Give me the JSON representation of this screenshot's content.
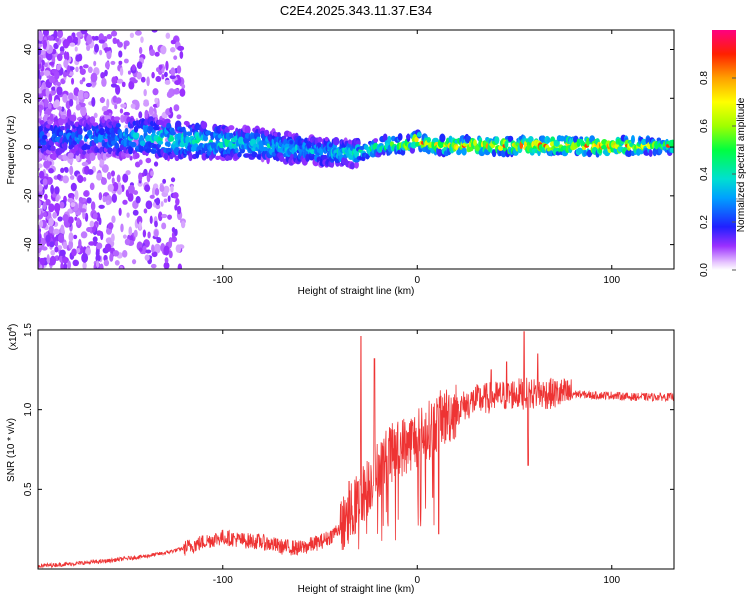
{
  "title": "C2E4.2025.343.11.37.E34",
  "chart_data": [
    {
      "type": "heatmap",
      "title": "C2E4.2025.343.11.37.E34",
      "xlabel": "Height of straight line (km)",
      "ylabel": "Frequency (Hz)",
      "xlim": [
        -195,
        132
      ],
      "ylim": [
        -50,
        48
      ],
      "xticks": [
        -100,
        0,
        100
      ],
      "yticks": [
        -40,
        -20,
        0,
        20,
        40
      ],
      "colorbar": {
        "label": "Normalized spectral amplitude",
        "range": [
          0,
          1
        ],
        "ticks": [
          0.0,
          0.2,
          0.4,
          0.6,
          0.8
        ]
      },
      "ridge": {
        "x": [
          -190,
          -160,
          -140,
          -120,
          -100,
          -80,
          -60,
          -50,
          -40,
          -33,
          -25,
          -15,
          -5,
          0,
          5,
          20,
          60,
          100,
          132
        ],
        "center_hz": [
          4,
          4,
          4,
          3,
          2,
          1,
          -1,
          -2,
          -2,
          -3,
          -1,
          1,
          1,
          3,
          1,
          0.5,
          0.5,
          0.5,
          0.5
        ],
        "amplitude": [
          0.25,
          0.3,
          0.42,
          0.45,
          0.45,
          0.42,
          0.35,
          0.4,
          0.4,
          0.45,
          0.5,
          0.6,
          0.65,
          0.8,
          0.75,
          0.8,
          0.85,
          0.85,
          0.55
        ]
      }
    },
    {
      "type": "line",
      "title": "",
      "xlabel": "Height of straight line (km)",
      "ylabel": "SNR (10 * v/v)",
      "y_multiplier": "(x10",
      "y_multiplier_exp": "4",
      "y_multiplier_close": ")",
      "xlim": [
        -195,
        132
      ],
      "ylim": [
        0,
        1.5
      ],
      "xticks": [
        -100,
        0,
        100
      ],
      "yticks": [
        0.5,
        1.0,
        1.5
      ],
      "ytick_labels": [
        "0.5",
        "1.0",
        "1.5"
      ],
      "color": "#ee3333",
      "series": [
        {
          "name": "SNR",
          "x": [
            -195,
            -180,
            -160,
            -140,
            -130,
            -120,
            -110,
            -100,
            -90,
            -80,
            -70,
            -60,
            -50,
            -45,
            -40,
            -35,
            -30,
            -25,
            -20,
            -15,
            -10,
            -5,
            0,
            5,
            10,
            15,
            20,
            25,
            30,
            40,
            50,
            60,
            70,
            80,
            90,
            100,
            110,
            120,
            132
          ],
          "values": [
            0.02,
            0.03,
            0.05,
            0.08,
            0.1,
            0.13,
            0.17,
            0.2,
            0.18,
            0.17,
            0.14,
            0.13,
            0.17,
            0.2,
            0.26,
            0.33,
            0.43,
            0.53,
            0.63,
            0.71,
            0.75,
            0.79,
            0.82,
            0.86,
            0.92,
            0.96,
            1.0,
            1.03,
            1.06,
            1.08,
            1.1,
            1.1,
            1.1,
            1.1,
            1.09,
            1.09,
            1.08,
            1.08,
            1.08
          ]
        }
      ],
      "spikes": [
        {
          "x": -29,
          "value": 1.46
        },
        {
          "x": -22,
          "value": 1.32
        },
        {
          "x": -35,
          "value": 0.55
        },
        {
          "x": 8,
          "value": 0.45
        },
        {
          "x": 11,
          "value": 0.22
        },
        {
          "x": 38,
          "value": 1.25
        },
        {
          "x": 55,
          "value": 1.49
        },
        {
          "x": 57,
          "value": 0.65
        },
        {
          "x": 62,
          "value": 1.35
        },
        {
          "x": 46,
          "value": 1.3
        }
      ]
    }
  ]
}
